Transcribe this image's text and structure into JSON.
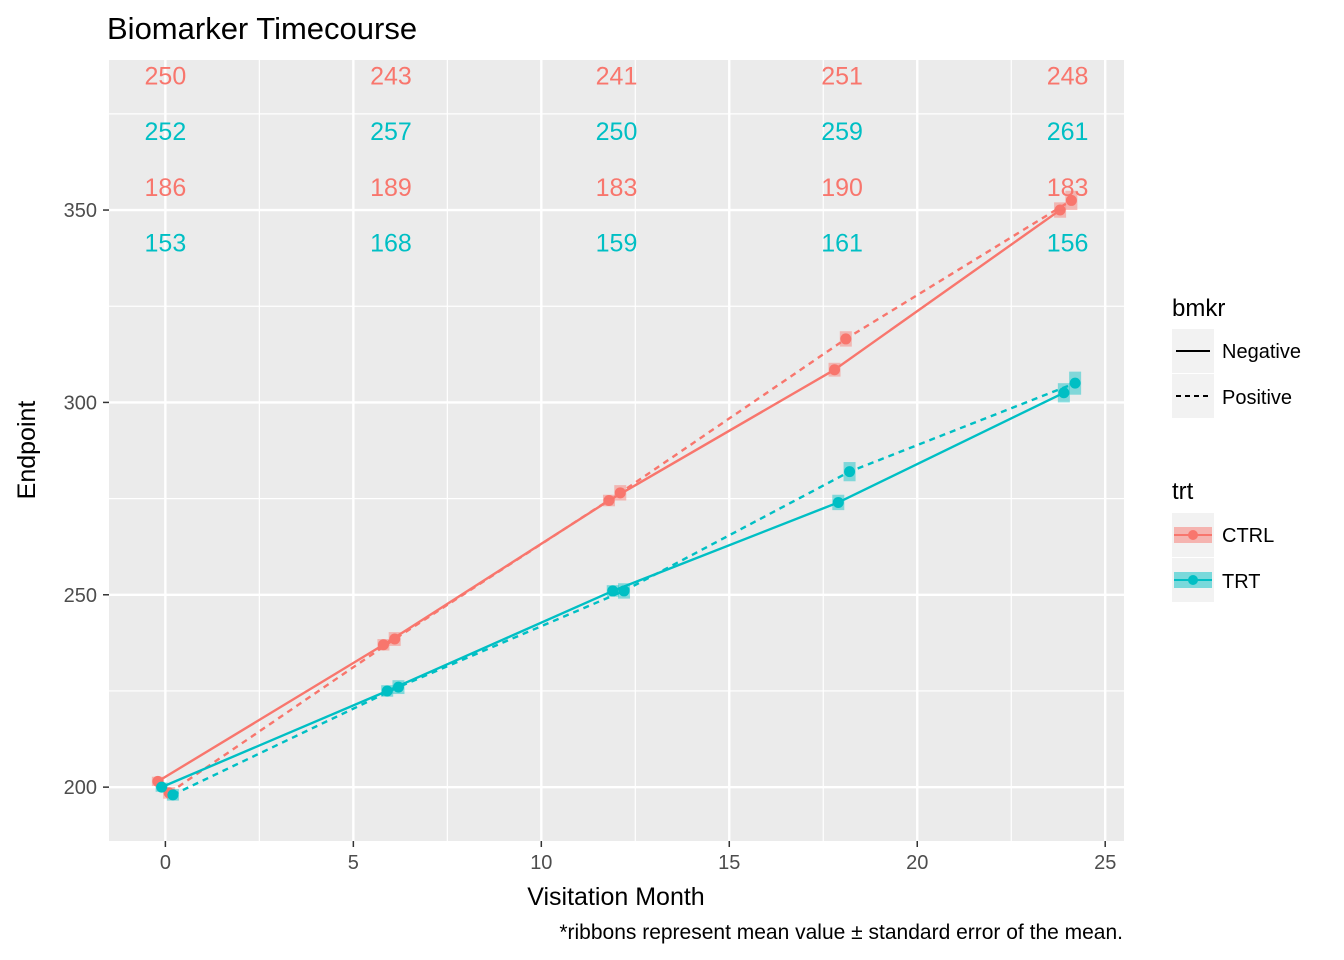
{
  "chart_data": {
    "type": "line",
    "title": "Biomarker Timecourse",
    "xlabel": "Visitation Month",
    "ylabel": "Endpoint",
    "caption": "*ribbons represent mean value ± standard error of the mean.",
    "xlim": [
      -1.5,
      25.5
    ],
    "ylim": [
      186,
      389
    ],
    "x_ticks": [
      0,
      5,
      10,
      15,
      20,
      25
    ],
    "y_ticks": [
      200,
      250,
      300,
      350
    ],
    "x_tick_labels": [
      "0",
      "5",
      "10",
      "15",
      "20",
      "25"
    ],
    "y_tick_labels": [
      "200",
      "250",
      "300",
      "350"
    ],
    "grid": true,
    "colors": {
      "CTRL": "#F8766D",
      "TRT": "#00BFC4",
      "panel": "#EBEBEB",
      "grid": "#FFFFFF"
    },
    "series": [
      {
        "trt": "CTRL",
        "bmkr": "Negative",
        "linetype": "solid",
        "x": [
          -0.2,
          5.8,
          11.8,
          17.8,
          23.8
        ],
        "y": [
          201.5,
          237,
          274.5,
          308.5,
          350
        ],
        "se": [
          1.2,
          1.5,
          1.5,
          1.8,
          2.0
        ]
      },
      {
        "trt": "CTRL",
        "bmkr": "Positive",
        "linetype": "dashed",
        "x": [
          0.1,
          6.1,
          12.1,
          18.1,
          24.1
        ],
        "y": [
          198.5,
          238.5,
          276.5,
          316.5,
          352.5
        ],
        "se": [
          1.5,
          1.8,
          2.0,
          2.0,
          2.5
        ]
      },
      {
        "trt": "TRT",
        "bmkr": "Negative",
        "linetype": "solid",
        "x": [
          -0.1,
          5.9,
          11.9,
          17.9,
          23.9
        ],
        "y": [
          200,
          225,
          251,
          274,
          302.5
        ],
        "se": [
          1.2,
          1.5,
          1.5,
          2.0,
          2.5
        ]
      },
      {
        "trt": "TRT",
        "bmkr": "Positive",
        "linetype": "dashed",
        "x": [
          0.2,
          6.2,
          12.2,
          18.2,
          24.2
        ],
        "y": [
          198,
          226,
          251,
          282,
          305
        ],
        "se": [
          1.5,
          1.8,
          2.0,
          2.5,
          3.0
        ]
      }
    ],
    "count_rows": [
      {
        "trt": "CTRL",
        "values": [
          "250",
          "243",
          "241",
          "251",
          "248"
        ]
      },
      {
        "trt": "TRT",
        "values": [
          "252",
          "257",
          "250",
          "259",
          "261"
        ]
      },
      {
        "trt": "CTRL",
        "values": [
          "186",
          "189",
          "183",
          "190",
          "183"
        ]
      },
      {
        "trt": "TRT",
        "values": [
          "153",
          "168",
          "159",
          "161",
          "156"
        ]
      }
    ],
    "count_x": [
      0,
      6,
      12,
      18,
      24
    ],
    "count_y": [
      385,
      370.5,
      356,
      341.5
    ],
    "legend": {
      "placement": "right",
      "bmkr": {
        "title": "bmkr",
        "items": [
          {
            "label": "Negative",
            "linetype": "solid"
          },
          {
            "label": "Positive",
            "linetype": "dashed"
          }
        ]
      },
      "trt": {
        "title": "trt",
        "items": [
          {
            "label": "CTRL"
          },
          {
            "label": "TRT"
          }
        ]
      }
    }
  }
}
